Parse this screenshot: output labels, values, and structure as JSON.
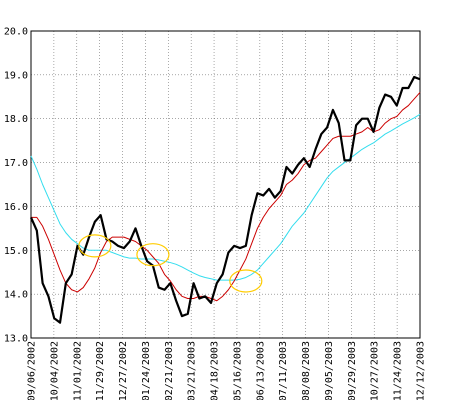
{
  "chart_data": {
    "type": "line",
    "title": "",
    "xlabel": "",
    "ylabel": "",
    "ylim": [
      13.0,
      20.0
    ],
    "y_ticks": [
      "13.0",
      "14.0",
      "15.0",
      "16.0",
      "17.0",
      "18.0",
      "19.0",
      "20.0"
    ],
    "x_ticks": [
      "09/06/2002",
      "10/04/2002",
      "11/01/2002",
      "11/29/2002",
      "12/27/2002",
      "01/24/2003",
      "02/21/2003",
      "03/21/2003",
      "04/18/2003",
      "05/16/2003",
      "06/13/2003",
      "07/11/2003",
      "08/08/2003",
      "09/05/2003",
      "09/29/2003",
      "10/27/2003",
      "11/24/2003",
      "12/12/2003"
    ],
    "grid": true,
    "legend": "none",
    "series": [
      {
        "color": "#000000",
        "values": [
          15.75,
          15.45,
          14.25,
          13.95,
          13.45,
          13.35,
          14.25,
          14.45,
          15.1,
          14.9,
          15.3,
          15.65,
          15.8,
          15.25,
          15.2,
          15.1,
          15.05,
          15.2,
          15.5,
          15.1,
          14.75,
          14.65,
          14.15,
          14.1,
          14.25,
          13.85,
          13.5,
          13.55,
          14.25,
          13.9,
          13.95,
          13.8,
          14.25,
          14.45,
          14.95,
          15.1,
          15.05,
          15.1,
          15.8,
          16.3,
          16.25,
          16.4,
          16.2,
          16.35,
          16.9,
          16.75,
          16.95,
          17.1,
          16.9,
          17.3,
          17.65,
          17.8,
          18.2,
          17.9,
          17.05,
          17.05,
          17.85,
          18.0,
          18.0,
          17.7,
          18.25,
          18.55,
          18.5,
          18.3,
          18.7,
          18.7,
          18.95,
          18.9
        ]
      },
      {
        "color": "#cc0000",
        "values": [
          15.75,
          15.75,
          15.55,
          15.25,
          14.9,
          14.55,
          14.25,
          14.1,
          14.05,
          14.15,
          14.35,
          14.6,
          14.95,
          15.2,
          15.3,
          15.3,
          15.3,
          15.25,
          15.2,
          15.1,
          15.0,
          14.85,
          14.7,
          14.45,
          14.3,
          14.1,
          13.95,
          13.9,
          13.9,
          13.95,
          13.95,
          13.9,
          13.85,
          13.95,
          14.1,
          14.3,
          14.55,
          14.8,
          15.15,
          15.5,
          15.75,
          15.95,
          16.1,
          16.25,
          16.5,
          16.6,
          16.75,
          16.95,
          17.05,
          17.1,
          17.25,
          17.4,
          17.55,
          17.6,
          17.6,
          17.6,
          17.65,
          17.7,
          17.8,
          17.7,
          17.75,
          17.9,
          18.0,
          18.05,
          18.2,
          18.3,
          18.45,
          18.6
        ]
      },
      {
        "color": "#33ddee",
        "values": [
          17.15,
          16.85,
          16.5,
          16.2,
          15.9,
          15.6,
          15.4,
          15.25,
          15.15,
          15.05,
          15.0,
          15.0,
          15.0,
          15.0,
          14.95,
          14.9,
          14.85,
          14.82,
          14.82,
          14.8,
          14.8,
          14.8,
          14.78,
          14.75,
          14.72,
          14.68,
          14.62,
          14.55,
          14.48,
          14.42,
          14.38,
          14.35,
          14.32,
          14.32,
          14.32,
          14.32,
          14.34,
          14.38,
          14.45,
          14.55,
          14.7,
          14.85,
          15.0,
          15.15,
          15.35,
          15.55,
          15.7,
          15.85,
          16.05,
          16.25,
          16.45,
          16.65,
          16.8,
          16.9,
          17.0,
          17.1,
          17.2,
          17.3,
          17.38,
          17.45,
          17.55,
          17.65,
          17.72,
          17.8,
          17.88,
          17.95,
          18.02,
          18.1
        ]
      }
    ],
    "annotations": [
      {
        "shape": "ellipse",
        "color": "#ffcc00",
        "x_index": 11,
        "y": 15.1
      },
      {
        "shape": "ellipse",
        "color": "#ffcc00",
        "x_index": 21,
        "y": 14.9
      },
      {
        "shape": "ellipse",
        "color": "#ffcc00",
        "x_index": 37,
        "y": 14.3
      }
    ]
  }
}
